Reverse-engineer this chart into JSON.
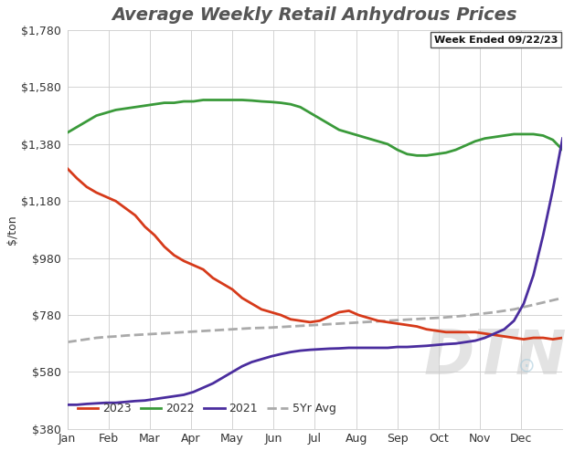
{
  "title": "Average Weekly Retail Anhydrous Prices",
  "annotation": "Week Ended 09/22/23",
  "ylabel": "$/ton",
  "ylim": [
    380,
    1780
  ],
  "yticks": [
    380,
    580,
    780,
    980,
    1180,
    1380,
    1580,
    1780
  ],
  "months": [
    "Jan",
    "Feb",
    "Mar",
    "Apr",
    "May",
    "Jun",
    "Jul",
    "Aug",
    "Sep",
    "Oct",
    "Nov",
    "Dec"
  ],
  "bg_color": "#ffffff",
  "plot_bg_color": "#ffffff",
  "grid_color": "#cccccc",
  "series_2023": {
    "color": "#d63a1a",
    "label": "2023",
    "values": [
      1295,
      1260,
      1230,
      1210,
      1195,
      1180,
      1155,
      1130,
      1090,
      1060,
      1020,
      990,
      970,
      955,
      940,
      910,
      890,
      870,
      840,
      820,
      800,
      790,
      780,
      765,
      760,
      755,
      760,
      775,
      790,
      795,
      780,
      770,
      760,
      755,
      750,
      745,
      740,
      730,
      725,
      720,
      720,
      720,
      720,
      715,
      710,
      705,
      700,
      695,
      700,
      700,
      695,
      700
    ]
  },
  "series_2022": {
    "color": "#3a9a3a",
    "label": "2022",
    "values": [
      1420,
      1440,
      1460,
      1480,
      1490,
      1500,
      1505,
      1510,
      1515,
      1520,
      1525,
      1525,
      1530,
      1530,
      1535,
      1535,
      1535,
      1535,
      1535,
      1533,
      1530,
      1528,
      1525,
      1520,
      1510,
      1490,
      1470,
      1450,
      1430,
      1420,
      1410,
      1400,
      1390,
      1380,
      1360,
      1345,
      1340,
      1340,
      1345,
      1350,
      1360,
      1375,
      1390,
      1400,
      1405,
      1410,
      1415,
      1415,
      1415,
      1410,
      1395,
      1360
    ]
  },
  "series_2021": {
    "color": "#4a2d9e",
    "label": "2021",
    "values": [
      465,
      465,
      468,
      470,
      472,
      472,
      475,
      478,
      480,
      485,
      490,
      495,
      500,
      510,
      525,
      540,
      560,
      580,
      600,
      615,
      625,
      635,
      643,
      650,
      655,
      658,
      660,
      662,
      663,
      665,
      665,
      665,
      665,
      665,
      668,
      668,
      670,
      672,
      675,
      678,
      680,
      685,
      690,
      700,
      715,
      730,
      760,
      820,
      920,
      1060,
      1220,
      1400
    ]
  },
  "series_5yr": {
    "color": "#aaaaaa",
    "label": "5Yr Avg",
    "linestyle": "dashed",
    "values": [
      685,
      690,
      695,
      700,
      703,
      705,
      708,
      710,
      712,
      714,
      716,
      718,
      720,
      722,
      724,
      726,
      728,
      730,
      732,
      734,
      735,
      736,
      738,
      740,
      742,
      744,
      746,
      748,
      750,
      752,
      754,
      756,
      758,
      760,
      762,
      764,
      766,
      768,
      770,
      772,
      775,
      778,
      782,
      786,
      790,
      795,
      800,
      808,
      816,
      824,
      832,
      840
    ]
  }
}
